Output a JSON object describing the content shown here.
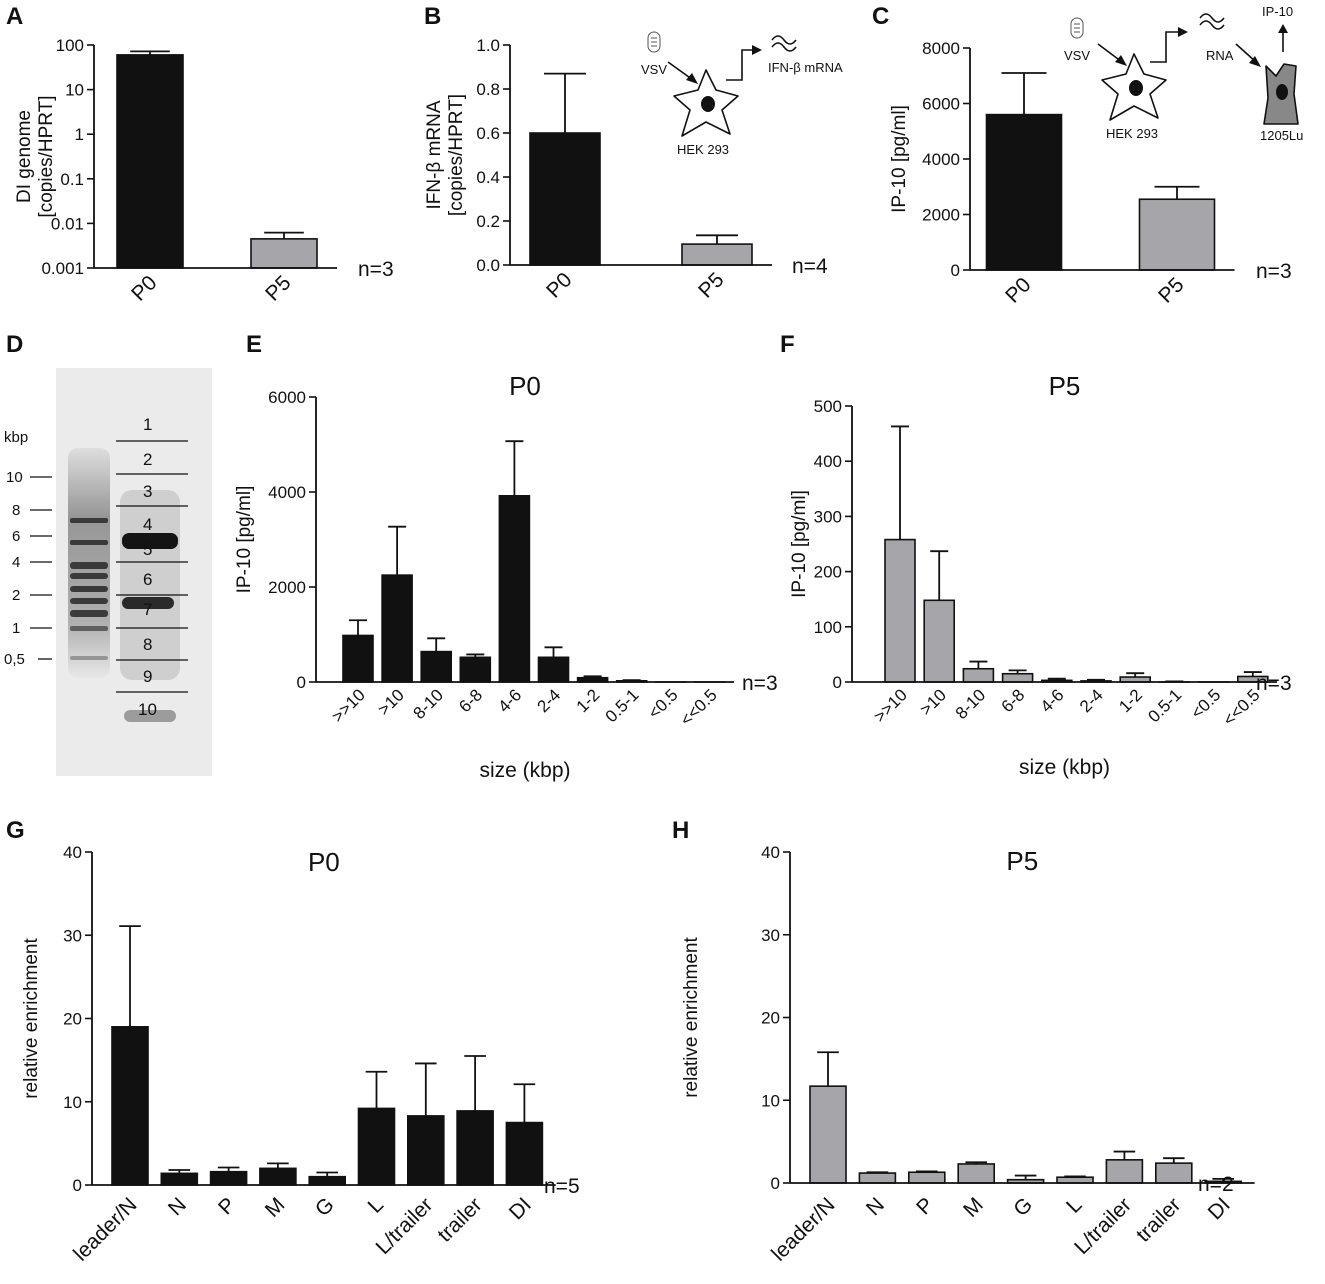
{
  "panel_letters": [
    "A",
    "B",
    "C",
    "D",
    "E",
    "F",
    "G",
    "H"
  ],
  "colors": {
    "P0": "#111111",
    "P5": "#a6a6aa",
    "axis": "#111111"
  },
  "chart_data": [
    {
      "id": "A",
      "type": "bar",
      "scale": "log",
      "categories": [
        "P0",
        "P5"
      ],
      "values": [
        60,
        0.0045
      ],
      "errors": [
        72,
        0.0062
      ],
      "colors": [
        "#111111",
        "#a6a6aa"
      ],
      "ylabel_lines": [
        "DI genome",
        "[copies/HPRT]"
      ],
      "ylim": [
        0.001,
        100
      ],
      "yticks": [
        0.001,
        0.01,
        0.1,
        1,
        10,
        100
      ],
      "ytick_labels": [
        "0.001",
        "0.01",
        "0.1",
        "1",
        "10",
        "100"
      ],
      "n_label": "n=3",
      "title": ""
    },
    {
      "id": "B",
      "type": "bar",
      "scale": "linear",
      "categories": [
        "P0",
        "P5"
      ],
      "values": [
        0.6,
        0.095
      ],
      "errors": [
        0.87,
        0.135
      ],
      "colors": [
        "#111111",
        "#a6a6aa"
      ],
      "ylabel_lines": [
        "IFN-β mRNA",
        "[copies/HPRT]"
      ],
      "ylim": [
        0,
        1.0
      ],
      "yticks": [
        0,
        0.2,
        0.4,
        0.6,
        0.8,
        1.0
      ],
      "ytick_labels": [
        "0.0",
        "0.2",
        "0.4",
        "0.6",
        "0.8",
        "1.0"
      ],
      "n_label": "n=4",
      "title": ""
    },
    {
      "id": "C",
      "type": "bar",
      "scale": "linear",
      "categories": [
        "P0",
        "P5"
      ],
      "values": [
        5600,
        2550
      ],
      "errors": [
        7100,
        3000
      ],
      "colors": [
        "#111111",
        "#a6a6aa"
      ],
      "ylabel_lines": [
        "IP-10 [pg/ml]"
      ],
      "ylim": [
        0,
        8000
      ],
      "yticks": [
        0,
        2000,
        4000,
        6000,
        8000
      ],
      "ytick_labels": [
        "0",
        "2000",
        "4000",
        "6000",
        "8000"
      ],
      "n_label": "n=3",
      "title": ""
    },
    {
      "id": "E",
      "type": "bar",
      "scale": "linear",
      "title": "P0",
      "categories": [
        ">>10",
        ">10",
        "8-10",
        "6-8",
        "4-6",
        "2-4",
        "1-2",
        "0.5-1",
        "<0.5",
        "<<0.5"
      ],
      "values": [
        980,
        2250,
        640,
        520,
        3920,
        520,
        90,
        25,
        0,
        0
      ],
      "errors": [
        1300,
        3270,
        920,
        580,
        5070,
        730,
        120,
        40,
        0,
        0
      ],
      "colors": [
        "#111111"
      ],
      "ylabel_lines": [
        "IP-10 [pg/ml]"
      ],
      "xlabel": "size (kbp)",
      "ylim": [
        0,
        6000
      ],
      "yticks": [
        0,
        2000,
        4000,
        6000
      ],
      "ytick_labels": [
        "0",
        "2000",
        "4000",
        "6000"
      ],
      "n_label": "n=3"
    },
    {
      "id": "F",
      "type": "bar",
      "scale": "linear",
      "title": "P5",
      "categories": [
        ">>10",
        ">10",
        "8-10",
        "6-8",
        "4-6",
        "2-4",
        "1-2",
        "0.5-1",
        "<0.5",
        "<<0.5"
      ],
      "values": [
        258,
        148,
        24,
        15,
        3,
        2,
        9,
        0,
        0,
        10
      ],
      "errors": [
        463,
        237,
        37,
        21,
        6,
        4,
        16,
        1,
        0,
        18
      ],
      "colors": [
        "#a6a6aa"
      ],
      "ylabel_lines": [
        "IP-10 [pg/ml]"
      ],
      "xlabel": "size (kbp)",
      "ylim": [
        0,
        500
      ],
      "yticks": [
        0,
        100,
        200,
        300,
        400,
        500
      ],
      "ytick_labels": [
        "0",
        "100",
        "200",
        "300",
        "400",
        "500"
      ],
      "n_label": "n=3"
    },
    {
      "id": "G",
      "type": "bar",
      "scale": "linear",
      "title": "P0",
      "categories": [
        "leader/N",
        "N",
        "P",
        "M",
        "G",
        "L",
        "L/trailer",
        "trailer",
        "DI"
      ],
      "values": [
        19.0,
        1.4,
        1.6,
        2.0,
        1.0,
        9.2,
        8.3,
        8.9,
        7.5
      ],
      "errors": [
        31.1,
        1.8,
        2.1,
        2.6,
        1.5,
        13.6,
        14.6,
        15.5,
        12.1
      ],
      "colors": [
        "#111111"
      ],
      "ylabel_lines": [
        "relative enrichment"
      ],
      "ylim": [
        0,
        40
      ],
      "yticks": [
        0,
        10,
        20,
        30,
        40
      ],
      "ytick_labels": [
        "0",
        "10",
        "20",
        "30",
        "40"
      ],
      "n_label": "n=5"
    },
    {
      "id": "H",
      "type": "bar",
      "scale": "linear",
      "title": "P5",
      "categories": [
        "leader/N",
        "N",
        "P",
        "M",
        "G",
        "L",
        "L/trailer",
        "trailer",
        "DI"
      ],
      "values": [
        11.7,
        1.2,
        1.3,
        2.3,
        0.4,
        0.7,
        2.8,
        2.4,
        0.2
      ],
      "errors": [
        15.8,
        1.3,
        1.4,
        2.5,
        0.9,
        0.8,
        3.8,
        3.0,
        0.5
      ],
      "colors": [
        "#a6a6aa"
      ],
      "ylabel_lines": [
        "relative enrichment"
      ],
      "ylim": [
        0,
        40
      ],
      "yticks": [
        0,
        10,
        20,
        30,
        40
      ],
      "ytick_labels": [
        "0",
        "10",
        "20",
        "30",
        "40"
      ],
      "n_label": "n=2"
    }
  ],
  "schematics": {
    "B": {
      "virus": "VSV",
      "product": "IFN-β mRNA",
      "cell": "HEK 293"
    },
    "C": {
      "virus": "VSV",
      "rna": "RNA",
      "cell1": "HEK 293",
      "secreted": "IP-10",
      "cell2": "1205Lu"
    }
  },
  "gel": {
    "unit": "kbp",
    "ladder_labels": [
      "10",
      "8",
      "6",
      "4",
      "2",
      "1",
      "0,5"
    ],
    "fraction_labels": [
      "1",
      "2",
      "3",
      "4",
      "5",
      "6",
      "7",
      "8",
      "9",
      "10"
    ]
  }
}
